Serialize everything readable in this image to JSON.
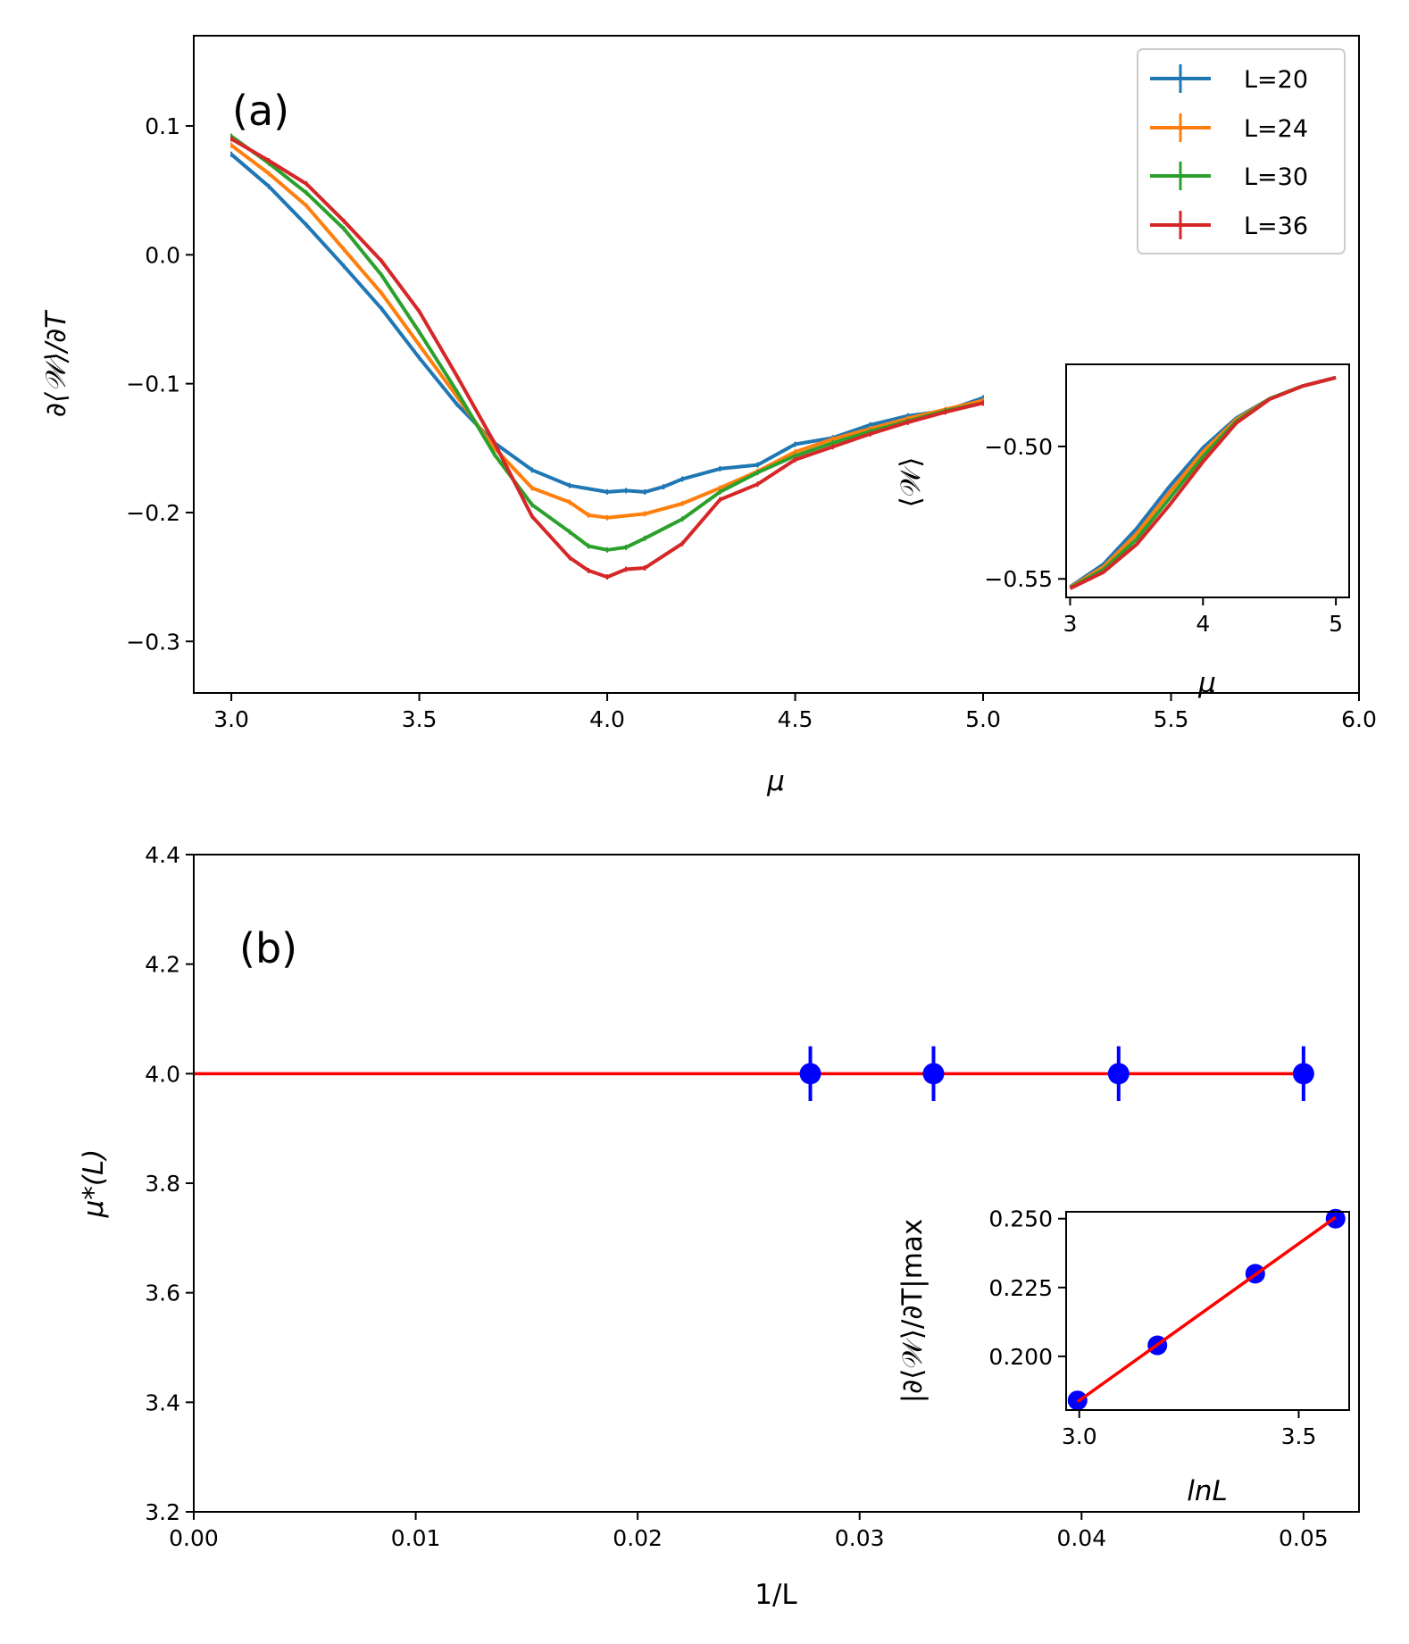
{
  "chart_data": [
    {
      "id": "panel_a",
      "type": "line",
      "panel_label": "(a)",
      "xlabel": "μ",
      "ylabel": "∂⟨𝒲⟩/∂T",
      "xlim": [
        2.9,
        6.0
      ],
      "ylim": [
        -0.34,
        0.17
      ],
      "xticks": [
        "3.0",
        "3.5",
        "4.0",
        "4.5",
        "5.0",
        "5.5",
        "6.0"
      ],
      "yticks": [
        "0.1",
        "0.0",
        "−0.1",
        "−0.2",
        "−0.3"
      ],
      "legend": {
        "placement": "top-right",
        "entries": [
          "L=20",
          "L=24",
          "L=30",
          "L=36"
        ]
      },
      "series": [
        {
          "name": "L=20",
          "color": "#1f77b4",
          "x": [
            3.0,
            3.1,
            3.2,
            3.3,
            3.4,
            3.5,
            3.6,
            3.7,
            3.8,
            3.9,
            4.0,
            4.05,
            4.1,
            4.15,
            4.2,
            4.3,
            4.4,
            4.5,
            4.6,
            4.7,
            4.8,
            4.9,
            5.0
          ],
          "y": [
            0.078,
            0.053,
            0.023,
            -0.009,
            -0.042,
            -0.08,
            -0.116,
            -0.146,
            -0.167,
            -0.179,
            -0.184,
            -0.183,
            -0.184,
            -0.18,
            -0.174,
            -0.166,
            -0.163,
            -0.147,
            -0.142,
            -0.132,
            -0.125,
            -0.121,
            -0.111
          ]
        },
        {
          "name": "L=24",
          "color": "#ff7f0e",
          "x": [
            3.0,
            3.1,
            3.2,
            3.3,
            3.4,
            3.5,
            3.6,
            3.7,
            3.8,
            3.9,
            3.95,
            4.0,
            4.1,
            4.2,
            4.3,
            4.4,
            4.5,
            4.6,
            4.7,
            4.8,
            4.9,
            5.0
          ],
          "y": [
            0.085,
            0.063,
            0.038,
            0.004,
            -0.03,
            -0.07,
            -0.11,
            -0.15,
            -0.181,
            -0.192,
            -0.202,
            -0.204,
            -0.201,
            -0.193,
            -0.181,
            -0.168,
            -0.153,
            -0.143,
            -0.135,
            -0.127,
            -0.12,
            -0.113
          ]
        },
        {
          "name": "L=30",
          "color": "#2ca02c",
          "x": [
            3.0,
            3.1,
            3.2,
            3.3,
            3.4,
            3.5,
            3.6,
            3.7,
            3.8,
            3.9,
            3.95,
            4.0,
            4.05,
            4.1,
            4.2,
            4.3,
            4.4,
            4.5,
            4.6,
            4.7,
            4.8,
            4.9,
            5.0
          ],
          "y": [
            0.092,
            0.071,
            0.048,
            0.02,
            -0.016,
            -0.06,
            -0.106,
            -0.155,
            -0.194,
            -0.215,
            -0.226,
            -0.229,
            -0.227,
            -0.22,
            -0.205,
            -0.184,
            -0.169,
            -0.156,
            -0.146,
            -0.137,
            -0.129,
            -0.121,
            -0.115
          ]
        },
        {
          "name": "L=36",
          "color": "#d62728",
          "x": [
            3.0,
            3.1,
            3.2,
            3.3,
            3.4,
            3.5,
            3.6,
            3.7,
            3.8,
            3.9,
            3.95,
            4.0,
            4.05,
            4.1,
            4.2,
            4.3,
            4.4,
            4.5,
            4.6,
            4.7,
            4.8,
            4.9,
            5.0
          ],
          "y": [
            0.09,
            0.073,
            0.055,
            0.026,
            -0.005,
            -0.044,
            -0.094,
            -0.146,
            -0.203,
            -0.235,
            -0.245,
            -0.25,
            -0.244,
            -0.243,
            -0.224,
            -0.19,
            -0.178,
            -0.159,
            -0.149,
            -0.139,
            -0.13,
            -0.122,
            -0.115
          ]
        }
      ]
    },
    {
      "id": "panel_a_inset",
      "type": "line",
      "xlabel": "μ",
      "ylabel": "⟨𝒲⟩",
      "xlim": [
        2.97,
        5.1
      ],
      "ylim": [
        -0.557,
        -0.469
      ],
      "xticks": [
        "3",
        "4",
        "5"
      ],
      "yticks": [
        "−0.50",
        "−0.55"
      ],
      "series": [
        {
          "name": "L=20",
          "color": "#1f77b4",
          "x": [
            3.0,
            3.25,
            3.5,
            3.75,
            4.0,
            4.25,
            4.5,
            4.75,
            5.0
          ],
          "y": [
            -0.553,
            -0.5445,
            -0.531,
            -0.515,
            -0.5005,
            -0.4893,
            -0.482,
            -0.4772,
            -0.474
          ]
        },
        {
          "name": "L=24",
          "color": "#ff7f0e",
          "x": [
            3.0,
            3.25,
            3.5,
            3.75,
            4.0,
            4.25,
            4.5,
            4.75,
            5.0
          ],
          "y": [
            -0.5532,
            -0.5455,
            -0.533,
            -0.5172,
            -0.502,
            -0.4898,
            -0.482,
            -0.4772,
            -0.474
          ]
        },
        {
          "name": "L=30",
          "color": "#2ca02c",
          "x": [
            3.0,
            3.25,
            3.5,
            3.75,
            4.0,
            4.25,
            4.5,
            4.75,
            5.0
          ],
          "y": [
            -0.5534,
            -0.5465,
            -0.535,
            -0.5195,
            -0.5038,
            -0.4905,
            -0.482,
            -0.4772,
            -0.474
          ]
        },
        {
          "name": "L=36",
          "color": "#d62728",
          "x": [
            3.0,
            3.25,
            3.5,
            3.75,
            4.0,
            4.25,
            4.5,
            4.75,
            5.0
          ],
          "y": [
            -0.5536,
            -0.5475,
            -0.537,
            -0.522,
            -0.5058,
            -0.4912,
            -0.4822,
            -0.4772,
            -0.474
          ]
        }
      ]
    },
    {
      "id": "panel_b",
      "type": "scatter",
      "panel_label": "(b)",
      "xlabel": "1/L",
      "ylabel": "μ*(L)",
      "xlim": [
        0.0,
        0.0525
      ],
      "ylim": [
        3.2,
        4.4
      ],
      "xticks": [
        "0.00",
        "0.01",
        "0.02",
        "0.03",
        "0.04",
        "0.05"
      ],
      "yticks": [
        "4.4",
        "4.2",
        "4.0",
        "3.8",
        "3.6",
        "3.4",
        "3.2"
      ],
      "points": {
        "color": "#0000ff",
        "x": [
          0.02778,
          0.03333,
          0.04167,
          0.05
        ],
        "y": [
          4.0,
          4.0,
          4.0,
          4.0
        ],
        "yerr": [
          0.05,
          0.05,
          0.05,
          0.05
        ]
      },
      "fit_line": {
        "color": "#ff0000",
        "x": [
          0.0,
          0.05
        ],
        "y": [
          4.0,
          4.0
        ]
      }
    },
    {
      "id": "panel_b_inset",
      "type": "scatter",
      "xlabel": "lnL",
      "ylabel": "|∂⟨𝒲⟩/∂T|max",
      "xlim": [
        2.97,
        3.615
      ],
      "ylim": [
        0.1805,
        0.2525
      ],
      "xticks": [
        "3.0",
        "3.5"
      ],
      "yticks": [
        "0.250",
        "0.225",
        "0.200"
      ],
      "points": {
        "color": "#0000ff",
        "x": [
          2.996,
          3.178,
          3.401,
          3.584
        ],
        "y": [
          0.184,
          0.204,
          0.23,
          0.25
        ]
      },
      "fit_line": {
        "color": "#ff0000",
        "x": [
          2.996,
          3.584
        ],
        "y": [
          0.1835,
          0.2505
        ]
      }
    }
  ]
}
